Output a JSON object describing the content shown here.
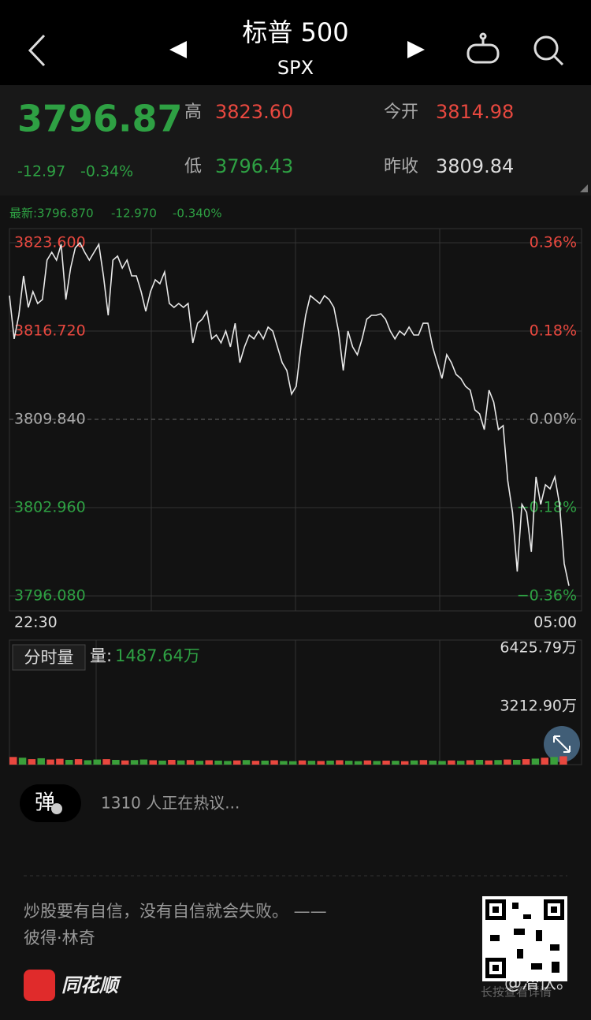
{
  "header": {
    "title": "标普 500",
    "code": "SPX"
  },
  "quote": {
    "price": "3796.87",
    "change": "-12.97",
    "change_pct": "-0.34%",
    "high_label": "高",
    "high": "3823.60",
    "low_label": "低",
    "low": "3796.43",
    "open_label": "今开",
    "open": "3814.98",
    "prev_close_label": "昨收",
    "prev_close": "3809.84"
  },
  "latest": {
    "price": "最新:3796.870",
    "change": "-12.970",
    "change_pct": "-0.340%"
  },
  "volume_info": {
    "tab": "分时量",
    "label": "量:",
    "value": "1487.64万"
  },
  "discussion": {
    "button": "弹",
    "text": "1310 人正在热议..."
  },
  "footer": {
    "quote": "炒股要有自信，没有自信就会失败。 ——",
    "author": "彼得·林奇",
    "brand": "同花顺",
    "qr_hint": "长按查看详情",
    "watermark": "@潜伏。"
  },
  "chart_data": [
    {
      "type": "line",
      "color": "#e8e8e8",
      "xlabels": [
        "22:30",
        "05:00"
      ],
      "values": [
        3819.48,
        3816.11,
        3817.95,
        3821.02,
        3818.56,
        3819.79,
        3818.87,
        3819.18,
        3822.25,
        3822.86,
        3822.25,
        3823.48,
        3819.18,
        3821.63,
        3823.2,
        3823.6,
        3822.86,
        3822.25,
        3822.86,
        3823.48,
        3821.02,
        3817.95,
        3822.25,
        3822.56,
        3821.63,
        3822.25,
        3821.02,
        3821.02,
        3819.79,
        3818.26,
        3819.79,
        3820.71,
        3820.41,
        3821.33,
        3818.87,
        3818.56,
        3818.87,
        3818.56,
        3818.87,
        3815.8,
        3817.33,
        3817.64,
        3818.26,
        3816.11,
        3816.41,
        3815.8,
        3816.72,
        3815.49,
        3817.33,
        3814.26,
        3815.49,
        3816.41,
        3816.11,
        3816.72,
        3816.11,
        3817.03,
        3816.72,
        3815.49,
        3814.26,
        3813.65,
        3811.81,
        3812.42,
        3815.49,
        3817.95,
        3819.48,
        3819.18,
        3818.87,
        3819.48,
        3819.18,
        3818.56,
        3816.72,
        3813.65,
        3816.72,
        3815.49,
        3814.88,
        3816.11,
        3817.64,
        3817.95,
        3817.95,
        3818.07,
        3817.64,
        3816.72,
        3816.11,
        3816.72,
        3816.41,
        3817.03,
        3816.41,
        3816.41,
        3817.33,
        3817.33,
        3815.49,
        3814.26,
        3813.03,
        3814.88,
        3814.26,
        3813.34,
        3813.03,
        3812.42,
        3812.11,
        3810.58,
        3810.27,
        3809.04,
        3812.11,
        3811.19,
        3809.04,
        3809.35,
        3805.05,
        3802.59,
        3797.98,
        3803.21,
        3802.59,
        3799.52,
        3805.36,
        3803.21,
        3804.74,
        3804.43,
        3805.36,
        3803.21,
        3798.6,
        3796.87
      ],
      "ylim": [
        3796.08,
        3823.6
      ],
      "yticks": [
        {
          "value": 3823.6,
          "label": "3823.600"
        },
        {
          "value": 3816.72,
          "label": "3816.720"
        },
        {
          "value": 3809.84,
          "label": "3809.840"
        },
        {
          "value": 3802.96,
          "label": "3802.960"
        },
        {
          "value": 3796.08,
          "label": "3796.080"
        }
      ],
      "y2lim": [
        -0.36,
        0.36
      ],
      "y2ticks": [
        {
          "value": 0.36,
          "label": "0.36%"
        },
        {
          "value": 0.18,
          "label": "0.18%"
        },
        {
          "value": 0,
          "label": "0.00%"
        },
        {
          "value": -0.18,
          "label": "−0.18%"
        },
        {
          "value": -0.36,
          "label": "−0.36%"
        }
      ],
      "grid": true
    },
    {
      "type": "bar",
      "values": [
        420,
        380,
        300,
        350,
        280,
        320,
        260,
        300,
        240,
        280,
        300,
        260,
        230,
        250,
        280,
        240,
        220,
        260,
        230,
        250,
        210,
        240,
        220,
        200,
        230,
        250,
        210,
        220,
        240,
        200,
        190,
        230,
        210,
        200,
        220,
        240,
        210,
        190,
        230,
        200,
        220,
        210,
        190,
        230,
        250,
        220,
        200,
        230,
        210,
        240,
        260,
        230,
        250,
        280,
        260,
        300,
        330,
        380,
        420,
        460
      ],
      "colors": [
        "#e8483f",
        "#3a9f3a",
        "#e8483f",
        "#3a9f3a",
        "#e8483f",
        "#e8483f",
        "#3a9f3a",
        "#e8483f",
        "#3a9f3a",
        "#3a9f3a",
        "#e8483f",
        "#3a9f3a",
        "#e8483f",
        "#3a9f3a",
        "#3a9f3a",
        "#e8483f",
        "#3a9f3a",
        "#e8483f",
        "#3a9f3a",
        "#e8483f",
        "#3a9f3a",
        "#e8483f",
        "#3a9f3a",
        "#3a9f3a",
        "#e8483f",
        "#3a9f3a",
        "#e8483f",
        "#3a9f3a",
        "#e8483f",
        "#3a9f3a",
        "#3a9f3a",
        "#e8483f",
        "#3a9f3a",
        "#e8483f",
        "#3a9f3a",
        "#e8483f",
        "#3a9f3a",
        "#3a9f3a",
        "#e8483f",
        "#3a9f3a",
        "#e8483f",
        "#3a9f3a",
        "#e8483f",
        "#3a9f3a",
        "#e8483f",
        "#3a9f3a",
        "#3a9f3a",
        "#e8483f",
        "#3a9f3a",
        "#e8483f",
        "#3a9f3a",
        "#e8483f",
        "#3a9f3a",
        "#e8483f",
        "#3a9f3a",
        "#e8483f",
        "#3a9f3a",
        "#e8483f",
        "#3a9f3a",
        "#e8483f"
      ],
      "ylim": [
        0,
        6425.79
      ],
      "yticks": [
        {
          "value": 6425.79,
          "label": "6425.79万"
        },
        {
          "value": 3212.9,
          "label": "3212.90万"
        }
      ]
    }
  ]
}
